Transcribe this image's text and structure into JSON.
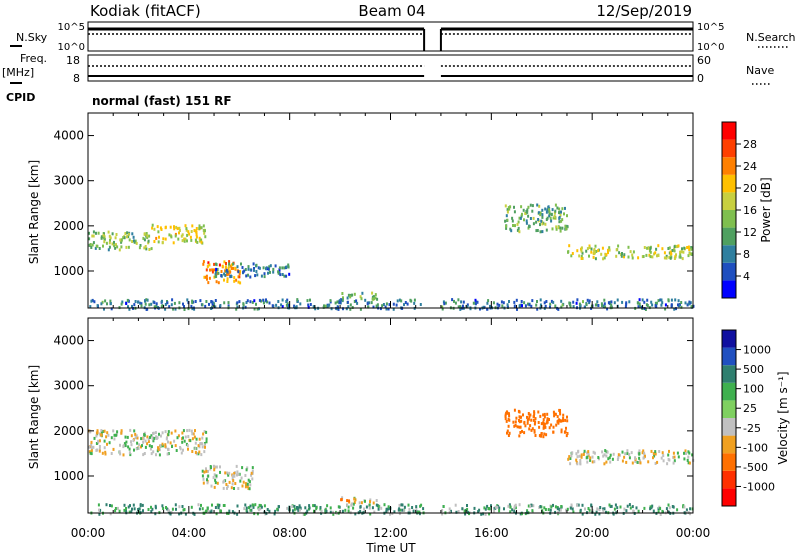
{
  "header": {
    "radar": "Kodiak (fitACF)",
    "beam": "Beam 04",
    "date": "12/Sep/2019"
  },
  "aux": {
    "nsky_label": "N.Sky",
    "nsky_ticks": [
      "10^5",
      "10^0"
    ],
    "nsearch_label": "N.Search",
    "nsearch_ticks": [
      "10^5",
      "10^0"
    ],
    "freq_label": "Freq.",
    "freq_unit": "[MHz]",
    "freq_ticks": [
      "18",
      "8"
    ],
    "nave_label": "Nave",
    "nave_ticks": [
      "60",
      "0"
    ],
    "cpid_label": "CPID",
    "cpid_value": "normal (fast) 151 RF"
  },
  "colors": {
    "power": [
      "#0000ff",
      "#1f4fbf",
      "#2f7f9f",
      "#4fa060",
      "#7fbf4f",
      "#c8d040",
      "#ffc000",
      "#ff8000",
      "#ff4000",
      "#ff0000"
    ],
    "velocity": [
      "#1010a0",
      "#2050c0",
      "#2f7f6f",
      "#3fb04f",
      "#7fd060",
      "#c0c0c0",
      "#f0a020",
      "#ff7000",
      "#ff3000",
      "#ff0000"
    ],
    "ground_scatter": "#c0c0c0"
  },
  "chart_data": [
    {
      "type": "heatmap",
      "name": "power",
      "xlabel": "",
      "ylabel": "Slant Range [km]",
      "ylim": [
        180,
        4500
      ],
      "yticks": [
        "1000",
        "2000",
        "3000",
        "4000"
      ],
      "colorbar": {
        "label": "Power [dB]",
        "range": [
          0,
          32
        ],
        "ticks": [
          "4",
          "8",
          "12",
          "16",
          "20",
          "24",
          "28"
        ]
      },
      "data_gap": [
        "13:20",
        "14:00"
      ],
      "echo_regions": [
        {
          "start": "00:00",
          "end": "02:30",
          "range_km": [
            1500,
            1900
          ],
          "power_db": 14
        },
        {
          "start": "02:30",
          "end": "04:40",
          "range_km": [
            1650,
            2050
          ],
          "power_db": 18
        },
        {
          "start": "04:30",
          "end": "06:00",
          "range_km": [
            750,
            1250
          ],
          "power_db": 24
        },
        {
          "start": "05:00",
          "end": "08:00",
          "range_km": [
            900,
            1200
          ],
          "power_db": 8
        },
        {
          "start": "10:00",
          "end": "11:30",
          "range_km": [
            400,
            550
          ],
          "power_db": 14
        },
        {
          "start": "16:30",
          "end": "19:00",
          "range_km": [
            1900,
            2500
          ],
          "power_db": 12
        },
        {
          "start": "19:00",
          "end": "24:00",
          "range_km": [
            1300,
            1600
          ],
          "power_db": 16
        },
        {
          "start": "00:00",
          "end": "24:00",
          "range_km": [
            180,
            400
          ],
          "power_db": 8
        }
      ]
    },
    {
      "type": "heatmap",
      "name": "velocity",
      "xlabel": "Time UT",
      "ylabel": "Slant Range [km]",
      "xticks": [
        "00:00",
        "04:00",
        "08:00",
        "12:00",
        "16:00",
        "20:00",
        "00:00"
      ],
      "ylim": [
        180,
        4500
      ],
      "yticks": [
        "1000",
        "2000",
        "3000",
        "4000"
      ],
      "colorbar": {
        "label": "Velocity [m s⁻¹]",
        "ticks": [
          "1000",
          "500",
          "100",
          "25",
          "-25",
          "-100",
          "-500",
          "-1000"
        ]
      },
      "data_gap": [
        "13:20",
        "14:00"
      ],
      "echo_regions": [
        {
          "start": "00:00",
          "end": "04:40",
          "range_km": [
            1500,
            2050
          ],
          "velocity": 0
        },
        {
          "start": "04:30",
          "end": "06:30",
          "range_km": [
            750,
            1250
          ],
          "velocity": 0
        },
        {
          "start": "10:00",
          "end": "11:30",
          "range_km": [
            400,
            550
          ],
          "velocity": -20
        },
        {
          "start": "16:30",
          "end": "19:00",
          "range_km": [
            1900,
            2500
          ],
          "velocity": -150
        },
        {
          "start": "19:00",
          "end": "24:00",
          "range_km": [
            1300,
            1600
          ],
          "velocity": 0
        },
        {
          "start": "00:00",
          "end": "24:00",
          "range_km": [
            180,
            400
          ],
          "velocity": 60
        }
      ]
    }
  ]
}
